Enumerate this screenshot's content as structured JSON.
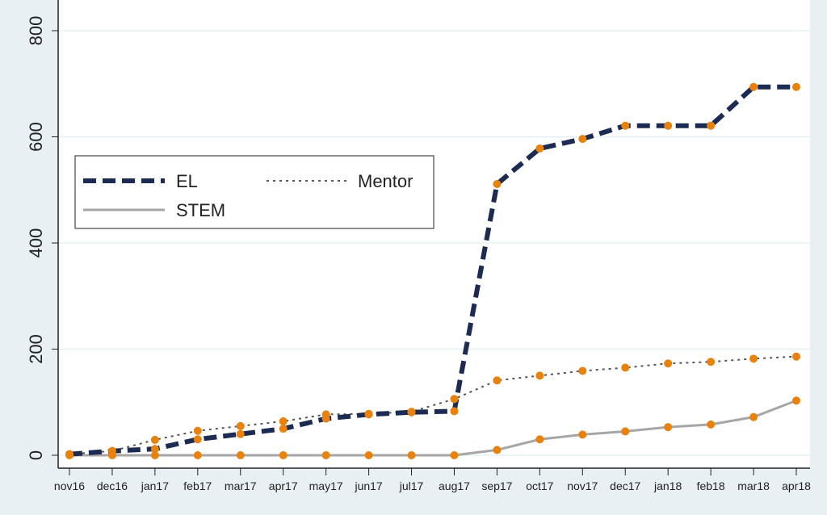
{
  "chart_data": {
    "type": "line",
    "title": "",
    "xlabel": "",
    "ylabel": "",
    "categories": [
      "nov16",
      "dec16",
      "jan17",
      "feb17",
      "mar17",
      "apr17",
      "may17",
      "jun17",
      "jul17",
      "aug17",
      "sep17",
      "oct17",
      "nov17",
      "dec17",
      "jan18",
      "feb18",
      "mar18",
      "apr18"
    ],
    "ylim": [
      0,
      800
    ],
    "yticks": [
      0,
      200,
      400,
      600,
      800
    ],
    "grid": true,
    "legend_position": "upper-left",
    "marker_color": "#e8820c",
    "series": [
      {
        "name": "EL",
        "style": "dashed",
        "color": "#1c2b52",
        "values": [
          2,
          8,
          12,
          30,
          40,
          50,
          69,
          77,
          81,
          83,
          511,
          578,
          596,
          621,
          621,
          621,
          694,
          694
        ]
      },
      {
        "name": "Mentor",
        "style": "dotted",
        "color": "#555555",
        "values": [
          2,
          8,
          29,
          46,
          55,
          64,
          77,
          78,
          82,
          106,
          141,
          150,
          159,
          165,
          173,
          176,
          182,
          186
        ]
      },
      {
        "name": "STEM",
        "style": "solid",
        "color": "#a6a6a6",
        "values": [
          0,
          0,
          0,
          0,
          0,
          0,
          0,
          0,
          0,
          0,
          10,
          30,
          39,
          45,
          53,
          58,
          72,
          103
        ]
      }
    ]
  }
}
